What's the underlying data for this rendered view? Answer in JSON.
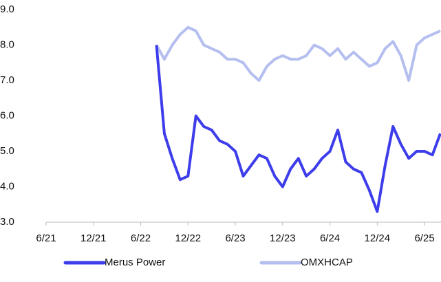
{
  "chart_data": {
    "type": "line",
    "x": [
      "2022-08",
      "2022-09",
      "2022-10",
      "2022-11",
      "2022-12",
      "2023-01",
      "2023-02",
      "2023-03",
      "2023-04",
      "2023-05",
      "2023-06",
      "2023-07",
      "2023-08",
      "2023-09",
      "2023-10",
      "2023-11",
      "2023-12",
      "2024-01",
      "2024-02",
      "2024-03",
      "2024-04",
      "2024-05",
      "2024-06",
      "2024-07",
      "2024-08",
      "2024-09",
      "2024-10",
      "2024-11",
      "2024-12",
      "2025-01",
      "2025-02",
      "2025-03",
      "2025-04",
      "2025-05",
      "2025-06",
      "2025-07",
      "2025-08"
    ],
    "series": [
      {
        "name": "Merus Power",
        "color": "#3d3deb",
        "values": [
          8.0,
          5.5,
          4.8,
          4.2,
          4.3,
          6.0,
          5.7,
          5.6,
          5.3,
          5.2,
          5.0,
          4.3,
          4.6,
          4.9,
          4.8,
          4.3,
          4.0,
          4.5,
          4.8,
          4.3,
          4.5,
          4.8,
          5.0,
          5.6,
          4.7,
          4.5,
          4.4,
          3.9,
          3.3,
          4.6,
          5.7,
          5.2,
          4.8,
          5.0,
          5.0,
          4.9,
          5.5
        ]
      },
      {
        "name": "OMXHCAP",
        "color": "#b4bff0",
        "values": [
          8.0,
          7.6,
          8.0,
          8.3,
          8.5,
          8.4,
          8.0,
          7.9,
          7.8,
          7.6,
          7.6,
          7.5,
          7.2,
          7.0,
          7.4,
          7.6,
          7.7,
          7.6,
          7.6,
          7.7,
          8.0,
          7.9,
          7.7,
          7.9,
          7.6,
          7.8,
          7.6,
          7.4,
          7.5,
          7.9,
          8.1,
          7.7,
          7.0,
          8.0,
          8.2,
          8.3,
          8.4
        ]
      }
    ],
    "xlim": [
      "2021-06",
      "2025-08"
    ],
    "xticks": [
      {
        "value": "2021-06",
        "label": "6/21"
      },
      {
        "value": "2021-12",
        "label": "12/21"
      },
      {
        "value": "2022-06",
        "label": "6/22"
      },
      {
        "value": "2022-12",
        "label": "12/22"
      },
      {
        "value": "2023-06",
        "label": "6/23"
      },
      {
        "value": "2023-12",
        "label": "12/23"
      },
      {
        "value": "2024-06",
        "label": "6/24"
      },
      {
        "value": "2024-12",
        "label": "12/24"
      },
      {
        "value": "2025-06",
        "label": "6/25"
      }
    ],
    "ylim": [
      3,
      9
    ],
    "yticks": [
      {
        "value": 3,
        "label": "3.0"
      },
      {
        "value": 4,
        "label": "4.0"
      },
      {
        "value": 5,
        "label": "5.0"
      },
      {
        "value": 6,
        "label": "6.0"
      },
      {
        "value": 7,
        "label": "7.0"
      },
      {
        "value": 8,
        "label": "8.0"
      },
      {
        "value": 9,
        "label": "9.0"
      }
    ],
    "grid": false
  }
}
